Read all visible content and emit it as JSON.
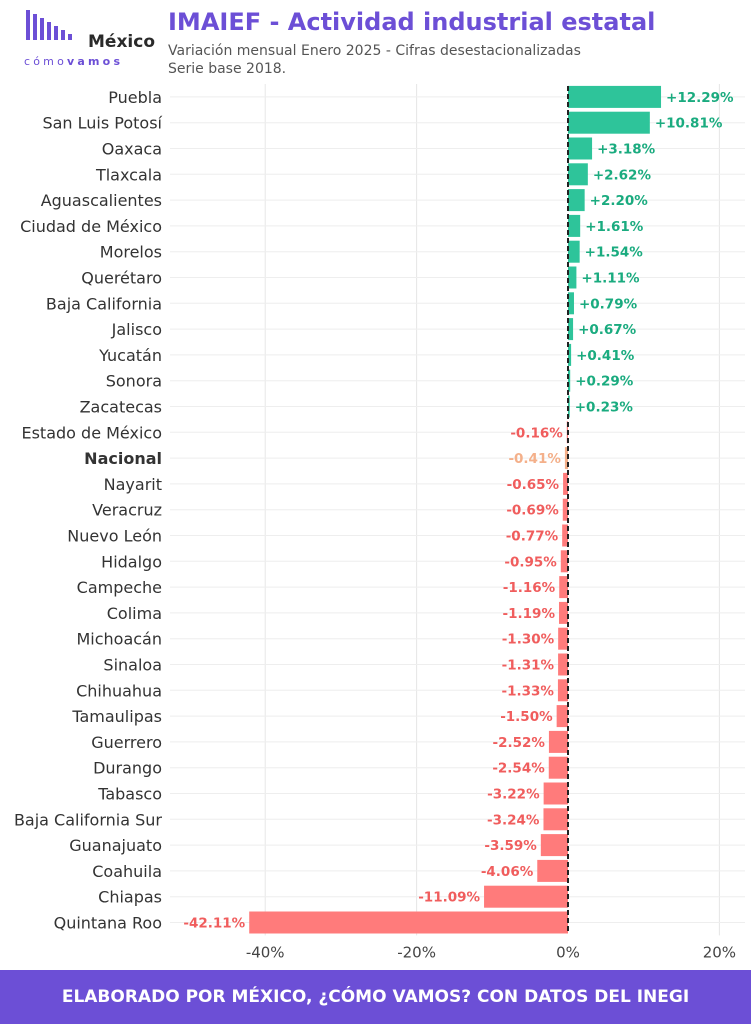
{
  "brand": {
    "logo_word": "México",
    "logo_sub_a": "cómo",
    "logo_sub_b": "vamos",
    "purple": "#6c4fd6"
  },
  "header": {
    "title": "IMAIEF - Actividad industrial estatal",
    "subtitle_line1": "Variación mensual Enero 2025 - Cifras desestacionalizadas",
    "subtitle_line2": "Serie base 2018."
  },
  "footer": {
    "text": "ELABORADO POR MÉXICO, ¿CÓMO VAMOS? CON DATOS DEL INEGI"
  },
  "chart_data": {
    "type": "bar",
    "orientation": "horizontal",
    "categories": [
      "Puebla",
      "San Luis Potosí",
      "Oaxaca",
      "Tlaxcala",
      "Aguascalientes",
      "Ciudad de México",
      "Morelos",
      "Querétaro",
      "Baja California",
      "Jalisco",
      "Yucatán",
      "Sonora",
      "Zacatecas",
      "Estado de México",
      "Nacional",
      "Nayarit",
      "Veracruz",
      "Nuevo León",
      "Hidalgo",
      "Campeche",
      "Colima",
      "Michoacán",
      "Sinaloa",
      "Chihuahua",
      "Tamaulipas",
      "Guerrero",
      "Durango",
      "Tabasco",
      "Baja California Sur",
      "Guanajuato",
      "Coahuila",
      "Chiapas",
      "Quintana Roo"
    ],
    "values": [
      12.29,
      10.81,
      3.18,
      2.62,
      2.2,
      1.61,
      1.54,
      1.11,
      0.79,
      0.67,
      0.41,
      0.29,
      0.23,
      -0.16,
      -0.41,
      -0.65,
      -0.69,
      -0.77,
      -0.95,
      -1.16,
      -1.19,
      -1.3,
      -1.31,
      -1.33,
      -1.5,
      -2.52,
      -2.54,
      -3.22,
      -3.24,
      -3.59,
      -4.06,
      -11.09,
      -42.11
    ],
    "labels": [
      "+12.29%",
      "+10.81%",
      "+3.18%",
      "+2.62%",
      "+2.20%",
      "+1.61%",
      "+1.54%",
      "+1.11%",
      "+0.79%",
      "+0.67%",
      "+0.41%",
      "+0.29%",
      "+0.23%",
      "-0.16%",
      "-0.41%",
      "-0.65%",
      "-0.69%",
      "-0.77%",
      "-0.95%",
      "-1.16%",
      "-1.19%",
      "-1.30%",
      "-1.31%",
      "-1.33%",
      "-1.50%",
      "-2.52%",
      "-2.54%",
      "-3.22%",
      "-3.24%",
      "-3.59%",
      "-4.06%",
      "-11.09%",
      "-42.11%"
    ],
    "highlight": "Nacional",
    "xticks": [
      -40,
      -20,
      0,
      20
    ],
    "xtick_labels": [
      "-40%",
      "-20%",
      "0%",
      "20%"
    ],
    "xlim": [
      -44,
      24
    ],
    "grid": true,
    "colors": {
      "positive": "#2ec49a",
      "positive_label": "#1aab7f",
      "negative": "#ff7b7b",
      "negative_label": "#f05d5d",
      "highlight": "#f4b08a",
      "zero_line": "#222222",
      "grid": "#e6e6e6"
    }
  }
}
